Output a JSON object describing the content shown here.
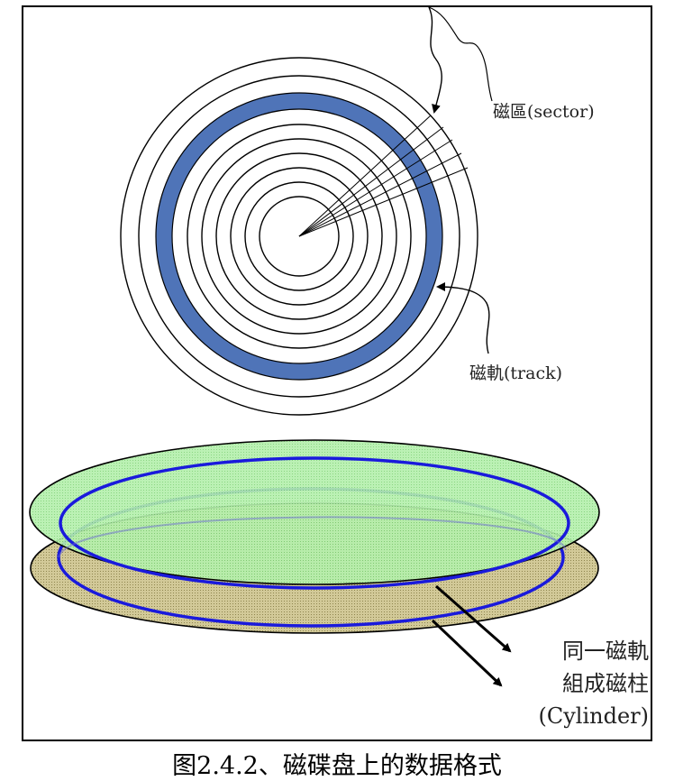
{
  "labels": {
    "sector": "磁區(sector)",
    "track": "磁軌(track)",
    "cylinder_line1": "同一磁軌",
    "cylinder_line2": "組成磁柱",
    "cylinder_line3": "(Cylinder)"
  },
  "caption": "图2.4.2、磁碟盘上的数据格式",
  "colors": {
    "track_fill": "#4f74b8",
    "top_platter": "#a6eb9e",
    "bottom_platter": "#c9c08c",
    "cylinder_track": "#1a1adc"
  }
}
